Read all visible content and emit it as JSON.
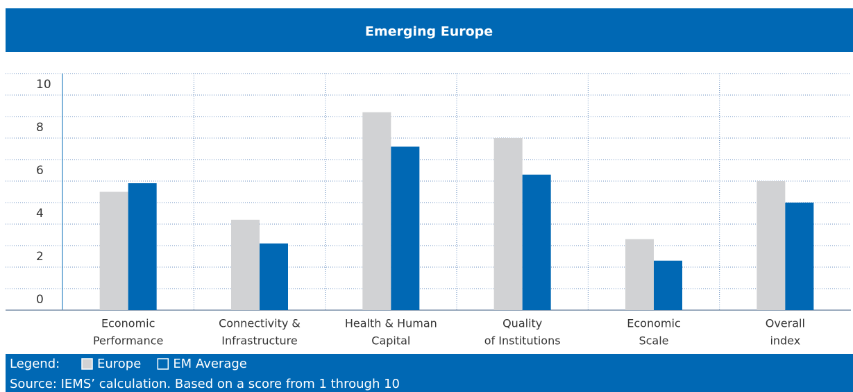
{
  "chart_data": {
    "type": "bar",
    "title": "Emerging Europe",
    "categories": [
      [
        "Economic",
        "Performance"
      ],
      [
        "Connectivity &",
        "Infrastructure"
      ],
      [
        "Health & Human",
        "Capital"
      ],
      [
        "Quality",
        "of Institutions"
      ],
      [
        "Economic",
        "Scale"
      ],
      [
        "Overall",
        "index"
      ]
    ],
    "series": [
      {
        "name": "Europe",
        "color": "#d1d2d4",
        "values": [
          5.5,
          4.2,
          9.2,
          8.0,
          3.3,
          6.0
        ]
      },
      {
        "name": "EM Average",
        "color": "#0068b4",
        "values": [
          5.9,
          3.1,
          7.6,
          6.3,
          2.3,
          5.0
        ]
      }
    ],
    "ylim": [
      0,
      11
    ],
    "yticks": [
      0,
      2,
      4,
      6,
      8,
      10
    ],
    "minor_yticks": [
      1,
      3,
      5,
      7,
      9
    ],
    "grid": true,
    "legend_label": "Legend:",
    "source": "Source: IEMS’ calculation. Based on a score from 1 through 10"
  }
}
